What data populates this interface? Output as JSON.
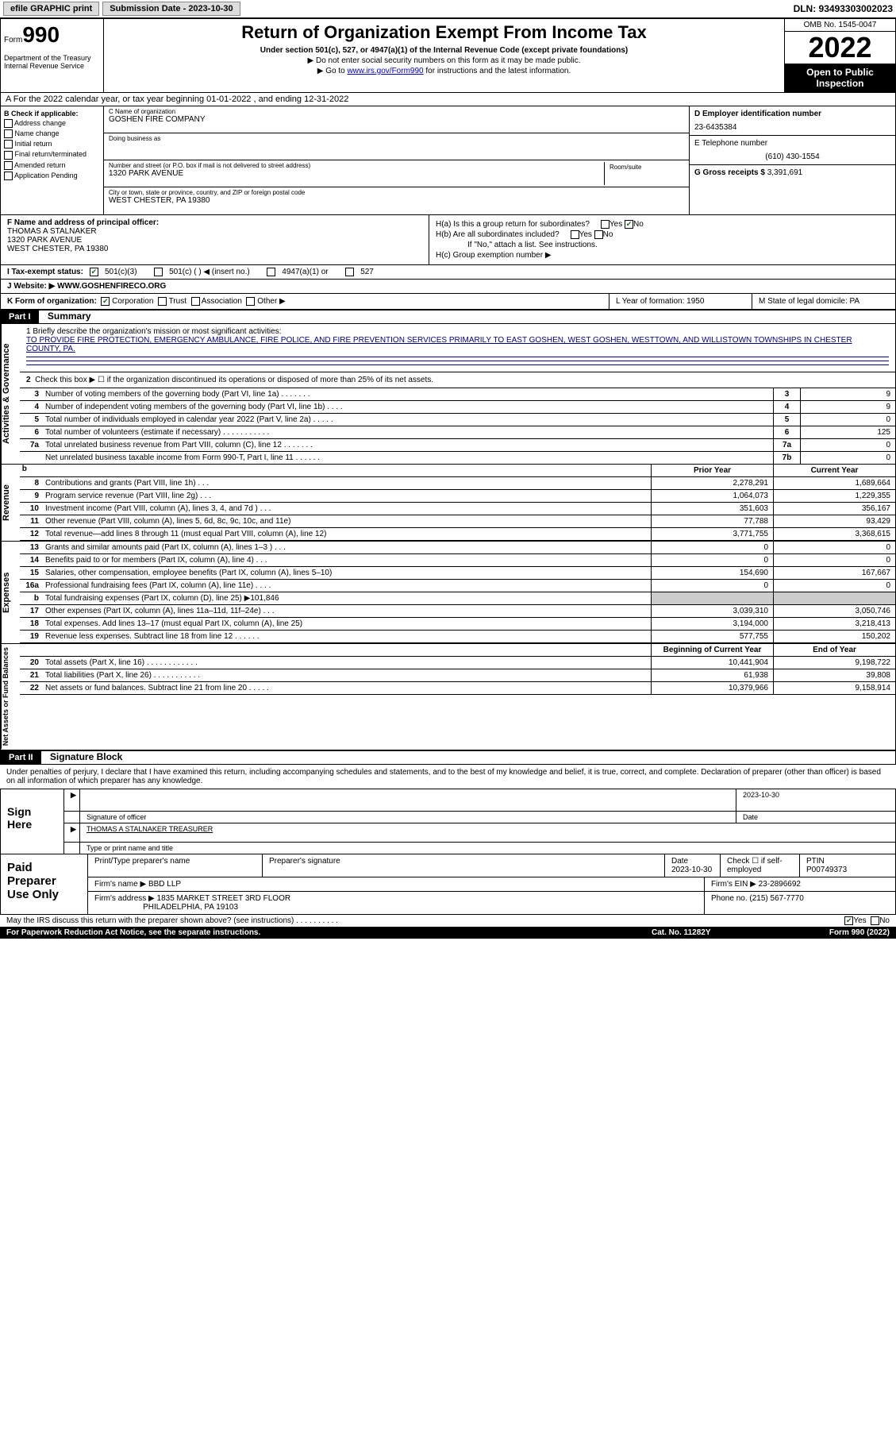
{
  "topbar": {
    "efile": "efile GRAPHIC print",
    "submission": "Submission Date - 2023-10-30",
    "dln": "DLN: 93493303002023"
  },
  "header": {
    "form_word": "Form",
    "form_num": "990",
    "dept": "Department of the Treasury Internal Revenue Service",
    "title": "Return of Organization Exempt From Income Tax",
    "subtitle": "Under section 501(c), 527, or 4947(a)(1) of the Internal Revenue Code (except private foundations)",
    "note1": "▶ Do not enter social security numbers on this form as it may be made public.",
    "note2_prefix": "▶ Go to ",
    "note2_link": "www.irs.gov/Form990",
    "note2_suffix": " for instructions and the latest information.",
    "omb": "OMB No. 1545-0047",
    "year": "2022",
    "open": "Open to Public Inspection"
  },
  "rowA": "A For the 2022 calendar year, or tax year beginning 01-01-2022   , and ending 12-31-2022",
  "colB": {
    "title": "B Check if applicable:",
    "opts": [
      "Address change",
      "Name change",
      "Initial return",
      "Final return/terminated",
      "Amended return",
      "Application Pending"
    ]
  },
  "boxC": {
    "name_lbl": "C Name of organization",
    "name": "GOSHEN FIRE COMPANY",
    "dba_lbl": "Doing business as",
    "addr_lbl": "Number and street (or P.O. box if mail is not delivered to street address)",
    "addr": "1320 PARK AVENUE",
    "room_lbl": "Room/suite",
    "city_lbl": "City or town, state or province, country, and ZIP or foreign postal code",
    "city": "WEST CHESTER, PA  19380"
  },
  "boxD": {
    "lbl": "D Employer identification number",
    "val": "23-6435384"
  },
  "boxE": {
    "lbl": "E Telephone number",
    "val": "(610) 430-1554"
  },
  "boxG": {
    "lbl": "G Gross receipts $",
    "val": "3,391,691"
  },
  "boxF": {
    "lbl": "F Name and address of principal officer:",
    "name": "THOMAS A STALNAKER",
    "addr1": "1320 PARK AVENUE",
    "addr2": "WEST CHESTER, PA  19380"
  },
  "boxH": {
    "a": "H(a)  Is this a group return for subordinates?",
    "b": "H(b)  Are all subordinates included?",
    "bnote": "If \"No,\" attach a list. See instructions.",
    "c": "H(c)  Group exemption number ▶"
  },
  "rowI": "I  Tax-exempt status:",
  "rowI_opts": [
    "501(c)(3)",
    "501(c) (  ) ◀ (insert no.)",
    "4947(a)(1) or",
    "527"
  ],
  "rowJ": "J  Website: ▶  WWW.GOSHENFIRECO.ORG",
  "rowK": {
    "left": "K Form of organization:",
    "opts": [
      "Corporation",
      "Trust",
      "Association",
      "Other ▶"
    ],
    "L": "L Year of formation: 1950",
    "M": "M State of legal domicile: PA"
  },
  "part1": {
    "hdr": "Part I",
    "title": "Summary"
  },
  "summary": {
    "line1": "1  Briefly describe the organization's mission or most significant activities:",
    "mission": "TO PROVIDE FIRE PROTECTION, EMERGENCY AMBULANCE, FIRE POLICE, AND FIRE PREVENTION SERVICES PRIMARILY TO EAST GOSHEN, WEST GOSHEN, WESTTOWN, AND WILLISTOWN TOWNSHIPS IN CHESTER COUNTY, PA.",
    "line2": "Check this box ▶ ☐  if the organization discontinued its operations or disposed of more than 25% of its net assets.",
    "rows": [
      {
        "n": "3",
        "d": "Number of voting members of the governing body (Part VI, line 1a)   .    .    .    .    .    .    .",
        "box": "3",
        "v": "9"
      },
      {
        "n": "4",
        "d": "Number of independent voting members of the governing body (Part VI, line 1b)   .    .    .    .",
        "box": "4",
        "v": "9"
      },
      {
        "n": "5",
        "d": "Total number of individuals employed in calendar year 2022 (Part V, line 2a)   .    .    .    .    .",
        "box": "5",
        "v": "0"
      },
      {
        "n": "6",
        "d": "Total number of volunteers (estimate if necessary)    .    .    .    .    .    .    .    .    .    .    .",
        "box": "6",
        "v": "125"
      },
      {
        "n": "7a",
        "d": "Total unrelated business revenue from Part VIII, column (C), line 12    .    .    .    .    .    .    .",
        "box": "7a",
        "v": "0"
      },
      {
        "n": "",
        "d": "Net unrelated business taxable income from Form 990-T, Part I, line 11   .    .    .    .    .    .",
        "box": "7b",
        "v": "0"
      }
    ]
  },
  "columns": {
    "prior": "Prior Year",
    "current": "Current Year",
    "beginning": "Beginning of Current Year",
    "end": "End of Year"
  },
  "revenue": [
    {
      "n": "8",
      "d": "Contributions and grants (Part VIII, line 1h)    .    .    .",
      "v1": "2,278,291",
      "v2": "1,689,664"
    },
    {
      "n": "9",
      "d": "Program service revenue (Part VIII, line 2g)    .    .    .",
      "v1": "1,064,073",
      "v2": "1,229,355"
    },
    {
      "n": "10",
      "d": "Investment income (Part VIII, column (A), lines 3, 4, and 7d )    .    .    .",
      "v1": "351,603",
      "v2": "356,167"
    },
    {
      "n": "11",
      "d": "Other revenue (Part VIII, column (A), lines 5, 6d, 8c, 9c, 10c, and 11e)",
      "v1": "77,788",
      "v2": "93,429"
    },
    {
      "n": "12",
      "d": "Total revenue—add lines 8 through 11 (must equal Part VIII, column (A), line 12)",
      "v1": "3,771,755",
      "v2": "3,368,615"
    }
  ],
  "expenses": [
    {
      "n": "13",
      "d": "Grants and similar amounts paid (Part IX, column (A), lines 1–3 )   .    .    .",
      "v1": "0",
      "v2": "0"
    },
    {
      "n": "14",
      "d": "Benefits paid to or for members (Part IX, column (A), line 4)   .    .    .",
      "v1": "0",
      "v2": "0"
    },
    {
      "n": "15",
      "d": "Salaries, other compensation, employee benefits (Part IX, column (A), lines 5–10)",
      "v1": "154,690",
      "v2": "167,667"
    },
    {
      "n": "16a",
      "d": "Professional fundraising fees (Part IX, column (A), line 11e)    .    .    .    .",
      "v1": "0",
      "v2": "0"
    },
    {
      "n": "b",
      "d": "Total fundraising expenses (Part IX, column (D), line 25) ▶101,846",
      "v1": "gray",
      "v2": "gray"
    },
    {
      "n": "17",
      "d": "Other expenses (Part IX, column (A), lines 11a–11d, 11f–24e)    .    .    .",
      "v1": "3,039,310",
      "v2": "3,050,746"
    },
    {
      "n": "18",
      "d": "Total expenses. Add lines 13–17 (must equal Part IX, column (A), line 25)",
      "v1": "3,194,000",
      "v2": "3,218,413"
    },
    {
      "n": "19",
      "d": "Revenue less expenses. Subtract line 18 from line 12   .    .    .    .    .    .",
      "v1": "577,755",
      "v2": "150,202"
    }
  ],
  "netassets": [
    {
      "n": "20",
      "d": "Total assets (Part X, line 16)   .    .    .    .    .    .    .    .    .    .    .    .",
      "v1": "10,441,904",
      "v2": "9,198,722"
    },
    {
      "n": "21",
      "d": "Total liabilities (Part X, line 26)   .    .    .    .    .    .    .    .    .    .    .",
      "v1": "61,938",
      "v2": "39,808"
    },
    {
      "n": "22",
      "d": "Net assets or fund balances. Subtract line 21 from line 20   .    .    .    .    .",
      "v1": "10,379,966",
      "v2": "9,158,914"
    }
  ],
  "side_labels": {
    "gov": "Activities & Governance",
    "rev": "Revenue",
    "exp": "Expenses",
    "net": "Net Assets or Fund Balances"
  },
  "part2": {
    "hdr": "Part II",
    "title": "Signature Block"
  },
  "sig_text": "Under penalties of perjury, I declare that I have examined this return, including accompanying schedules and statements, and to the best of my knowledge and belief, it is true, correct, and complete. Declaration of preparer (other than officer) is based on all information of which preparer has any knowledge.",
  "sign": {
    "here": "Sign Here",
    "sig_lbl": "Signature of officer",
    "date": "2023-10-30",
    "date_lbl": "Date",
    "name": "THOMAS A STALNAKER  TREASURER",
    "name_lbl": "Type or print name and title"
  },
  "paid": {
    "title": "Paid Preparer Use Only",
    "h1": "Print/Type preparer's name",
    "h2": "Preparer's signature",
    "h3": "Date",
    "date": "2023-10-30",
    "h4": "Check ☐ if self-employed",
    "h5": "PTIN",
    "ptin": "P00749373",
    "firm_lbl": "Firm's name    ▶",
    "firm": "BBD LLP",
    "ein_lbl": "Firm's EIN ▶",
    "ein": "23-2896692",
    "addr_lbl": "Firm's address ▶",
    "addr1": "1835 MARKET STREET 3RD FLOOR",
    "addr2": "PHILADELPHIA, PA  19103",
    "phone_lbl": "Phone no.",
    "phone": "(215) 567-7770"
  },
  "discuss": "May the IRS discuss this return with the preparer shown above? (see instructions)   .    .    .    .    .    .    .    .    .    .",
  "footer": {
    "left": "For Paperwork Reduction Act Notice, see the separate instructions.",
    "mid": "Cat. No. 11282Y",
    "right": "Form 990 (2022)"
  }
}
